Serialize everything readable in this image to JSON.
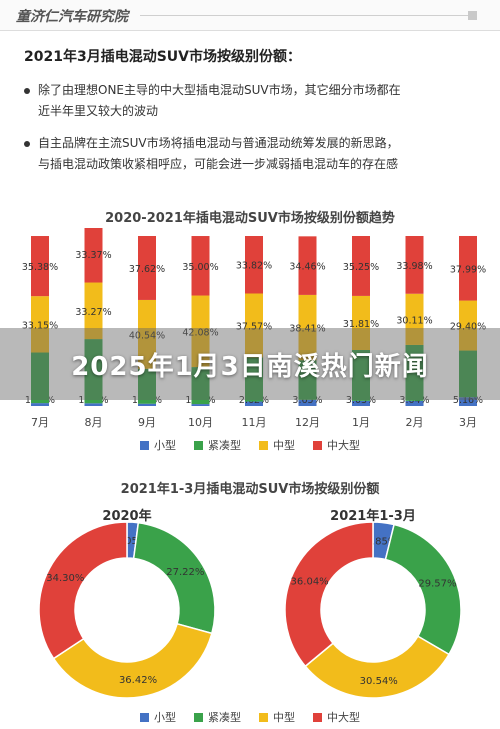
{
  "header": {
    "brand": "童济仁汽车研究院"
  },
  "section": {
    "title": "2021年3月插电混动SUV市场按级别份额：",
    "bullets": [
      {
        "line1": "除了由理想ONE主导的中大型插电混动SUV市场，其它细分市场都在",
        "line2": "近半年里又较大的波动"
      },
      {
        "line1": "自主品牌在主流SUV市场将插电混动与普通混动统筹发展的新思路，",
        "line2": "与插电混动政策收紧相呼应，可能会进一步减弱插电混动车的存在感"
      }
    ]
  },
  "colors": {
    "small": "#4472c4",
    "compact": "#3aa24a",
    "mid": "#f2bc1b",
    "large": "#e0413a"
  },
  "chart_data": [
    {
      "type": "bar",
      "stacked": true,
      "percent": true,
      "title": "2020-2021年插电混动SUV市场按级别份额趋势",
      "categories": [
        "7月",
        "8月",
        "9月",
        "10月",
        "11月",
        "12月",
        "1月",
        "2月",
        "3月"
      ],
      "series": [
        {
          "name": "小型",
          "values": [
            1.7,
            1.59,
            1.33,
            1.13,
            2.62,
            3.65,
            3.03,
            3.04,
            5.16
          ]
        },
        {
          "name": "紧凑型",
          "values": [
            29.76,
            37.77,
            20.51,
            21.77,
            25.99,
            23.28,
            29.91,
            32.87,
            27.46
          ]
        },
        {
          "name": "中型",
          "values": [
            33.15,
            33.27,
            40.54,
            42.08,
            37.57,
            38.41,
            31.81,
            30.11,
            29.4
          ]
        },
        {
          "name": "中大型",
          "values": [
            35.38,
            33.37,
            37.62,
            35.0,
            33.82,
            34.46,
            35.25,
            33.98,
            37.99
          ]
        }
      ],
      "visible_labels": {
        "小型": [
          "1.70%",
          "1.59%",
          "1.33%",
          "1.13%",
          "2.62%",
          "3.65%",
          "3.03%",
          "3.04%",
          "5.16%"
        ],
        "中型": [
          "33.15%",
          "33.27%",
          "40.54%",
          "42.08%",
          "37.57%",
          "38.41%",
          "31.81%",
          "30.11%",
          "29.40%"
        ],
        "中大型": [
          "35.38%",
          "33.37%",
          "37.62%",
          "35.00%",
          "33.82%",
          "34.46%",
          "35.25%",
          "33.98%",
          "37.99%"
        ]
      },
      "legend_position": "bottom"
    },
    {
      "type": "pie",
      "donut": true,
      "title": "2021年1-3月插电混动SUV市场按级别份额",
      "label": "2020年",
      "slices": [
        {
          "name": "小型",
          "value": 2.05,
          "label": "2.05%"
        },
        {
          "name": "紧凑型",
          "value": 27.22,
          "label": "27.22%"
        },
        {
          "name": "中型",
          "value": 36.42,
          "label": "36.42%"
        },
        {
          "name": "中大型",
          "value": 34.3,
          "label": "34.30%"
        }
      ]
    },
    {
      "type": "pie",
      "donut": true,
      "label": "2021年1-3月",
      "slices": [
        {
          "name": "小型",
          "value": 3.85,
          "label": "3.85%"
        },
        {
          "name": "紧凑型",
          "value": 29.57,
          "label": "29.57%"
        },
        {
          "name": "中型",
          "value": 30.54,
          "label": "30.54%"
        },
        {
          "name": "中大型",
          "value": 36.04,
          "label": "36.04%"
        }
      ],
      "legend_position": "bottom"
    }
  ],
  "legend": [
    "小型",
    "紧凑型",
    "中型",
    "中大型"
  ],
  "overlay": {
    "text": "2025年1月3日南溪热门新闻"
  }
}
